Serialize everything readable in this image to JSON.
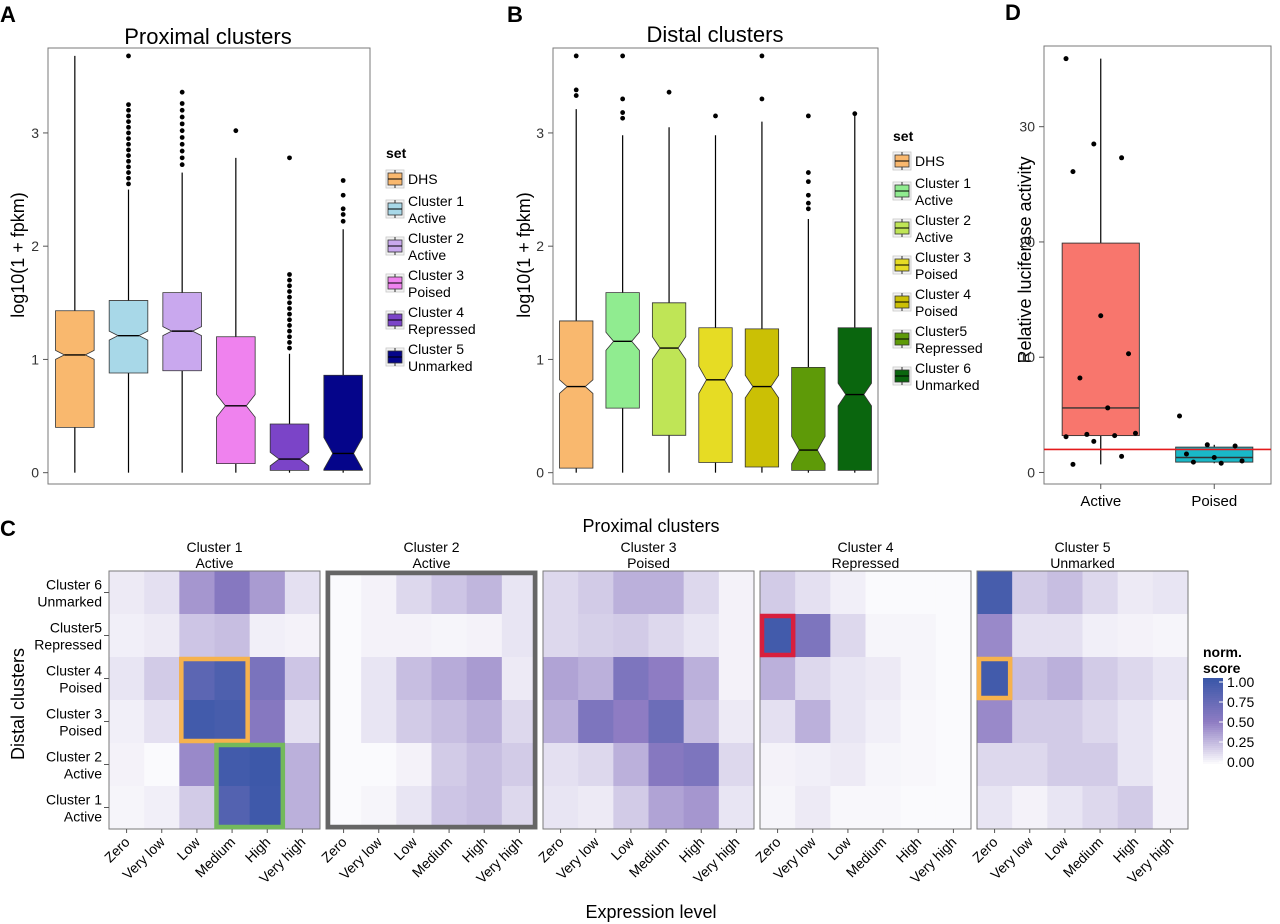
{
  "panels": {
    "A": {
      "letter": "A",
      "title": "Proximal clusters",
      "ylabel": "log10(1 + fpkm)",
      "ylim": [
        -0.1,
        3.75
      ],
      "yticks": [
        0,
        1,
        2,
        3
      ],
      "legend_title": "set",
      "boxes": [
        {
          "name": "DHS",
          "label_lines": [
            "DHS"
          ],
          "color": "#f9b86e",
          "q1": 0.4,
          "median": 1.04,
          "q3": 1.43,
          "notch": 0.04,
          "whisker_low": 0.0,
          "whisker_high": 3.68
        },
        {
          "name": "Cluster 1 Active",
          "label_lines": [
            "Cluster 1",
            "Active"
          ],
          "color": "#a8d8e8",
          "q1": 0.88,
          "median": 1.21,
          "q3": 1.52,
          "notch": 0.04,
          "whisker_low": 0.0,
          "whisker_high": 2.5,
          "outliers": [
            2.55,
            2.6,
            2.65,
            2.7,
            2.75,
            2.8,
            2.85,
            2.9,
            2.95,
            3.0,
            3.05,
            3.1,
            3.15,
            3.2,
            3.25,
            3.68
          ]
        },
        {
          "name": "Cluster 2 Active",
          "label_lines": [
            "Cluster 2",
            "Active"
          ],
          "color": "#c9a8ee",
          "q1": 0.9,
          "median": 1.25,
          "q3": 1.59,
          "notch": 0.04,
          "whisker_low": 0.0,
          "whisker_high": 2.65,
          "outliers": [
            2.72,
            2.78,
            2.84,
            2.9,
            2.96,
            3.02,
            3.08,
            3.14,
            3.2,
            3.26,
            3.36
          ]
        },
        {
          "name": "Cluster 3 Poised",
          "label_lines": [
            "Cluster 3",
            "Poised"
          ],
          "color": "#ef82ee",
          "q1": 0.08,
          "median": 0.59,
          "q3": 1.2,
          "notch": 0.1,
          "whisker_low": 0.0,
          "whisker_high": 2.78,
          "outliers": [
            3.02
          ]
        },
        {
          "name": "Cluster 4 Repressed",
          "label_lines": [
            "Cluster 4",
            "Repressed"
          ],
          "color": "#7b44c8",
          "q1": 0.02,
          "median": 0.12,
          "q3": 0.43,
          "notch": 0.06,
          "whisker_low": 0.0,
          "whisker_high": 1.05,
          "outliers": [
            1.1,
            1.15,
            1.2,
            1.25,
            1.3,
            1.35,
            1.4,
            1.45,
            1.5,
            1.55,
            1.6,
            1.65,
            1.7,
            1.75,
            2.78
          ]
        },
        {
          "name": "Cluster 5 Unmarked",
          "label_lines": [
            "Cluster 5",
            "Unmarked"
          ],
          "color": "#05058a",
          "q1": 0.02,
          "median": 0.17,
          "q3": 0.86,
          "notch": 0.14,
          "whisker_low": 0.0,
          "whisker_high": 2.15,
          "outliers": [
            2.22,
            2.28,
            2.33,
            2.45,
            2.58
          ]
        }
      ]
    },
    "B": {
      "letter": "B",
      "title": "Distal clusters",
      "ylabel": "log10(1 + fpkm)",
      "ylim": [
        -0.1,
        3.75
      ],
      "yticks": [
        0,
        1,
        2,
        3
      ],
      "legend_title": "set",
      "boxes": [
        {
          "name": "DHS",
          "label_lines": [
            "DHS"
          ],
          "color": "#f9b86e",
          "q1": 0.04,
          "median": 0.76,
          "q3": 1.34,
          "notch": 0.06,
          "whisker_low": 0.0,
          "whisker_high": 3.21,
          "outliers": [
            3.33,
            3.38,
            3.68
          ]
        },
        {
          "name": "Cluster 1 Active",
          "label_lines": [
            "Cluster 1",
            "Active"
          ],
          "color": "#90ec90",
          "q1": 0.57,
          "median": 1.16,
          "q3": 1.59,
          "notch": 0.08,
          "whisker_low": 0.0,
          "whisker_high": 2.98,
          "outliers": [
            3.13,
            3.18,
            3.3,
            3.68
          ]
        },
        {
          "name": "Cluster 2 Active",
          "label_lines": [
            "Cluster 2",
            "Active"
          ],
          "color": "#bfe556",
          "q1": 0.33,
          "median": 1.1,
          "q3": 1.5,
          "notch": 0.1,
          "whisker_low": 0.0,
          "whisker_high": 3.05,
          "outliers": [
            3.36
          ]
        },
        {
          "name": "Cluster 3 Poised",
          "label_lines": [
            "Cluster 3",
            "Poised"
          ],
          "color": "#e6dc24",
          "q1": 0.09,
          "median": 0.82,
          "q3": 1.28,
          "notch": 0.12,
          "whisker_low": 0.0,
          "whisker_high": 2.98,
          "outliers": [
            3.15
          ]
        },
        {
          "name": "Cluster 4 Poised",
          "label_lines": [
            "Cluster 4",
            "Poised"
          ],
          "color": "#cbc005",
          "q1": 0.05,
          "median": 0.76,
          "q3": 1.27,
          "notch": 0.1,
          "whisker_low": 0.0,
          "whisker_high": 3.1,
          "outliers": [
            3.3,
            3.68
          ]
        },
        {
          "name": "Cluster5 Repressed",
          "label_lines": [
            "Cluster5",
            "Repressed"
          ],
          "color": "#5e9a08",
          "q1": 0.02,
          "median": 0.2,
          "q3": 0.93,
          "notch": 0.12,
          "whisker_low": 0.0,
          "whisker_high": 2.24,
          "outliers": [
            2.33,
            2.38,
            2.45,
            2.57,
            2.65,
            3.15
          ]
        },
        {
          "name": "Cluster 6 Unmarked",
          "label_lines": [
            "Cluster 6",
            "Unmarked"
          ],
          "color": "#0a660e",
          "q1": 0.02,
          "median": 0.69,
          "q3": 1.28,
          "notch": 0.1,
          "whisker_low": 0.0,
          "whisker_high": 3.17,
          "outliers": [
            3.17
          ]
        }
      ]
    },
    "D": {
      "letter": "D",
      "ylabel": "Relative luciferase activity",
      "ylim": [
        -1,
        37
      ],
      "yticks": [
        0,
        10,
        20,
        30
      ],
      "reference_line": 2.0,
      "groups": [
        {
          "name": "Active",
          "color": "#f8766d",
          "q1": 3.2,
          "median": 5.6,
          "q3": 19.9,
          "whisker_low": 0.7,
          "whisker_high": 35.9,
          "points": [
            35.9,
            28.5,
            27.3,
            26.1,
            13.6,
            10.3,
            8.2,
            5.6,
            3.4,
            3.3,
            3.2,
            3.1,
            2.7,
            1.4,
            0.7
          ]
        },
        {
          "name": "Poised",
          "color": "#19b8c7",
          "q1": 0.9,
          "median": 1.3,
          "q3": 2.2,
          "whisker_low": 0.8,
          "whisker_high": 2.4,
          "points": [
            4.9,
            2.4,
            2.3,
            1.6,
            1.3,
            1.0,
            0.9,
            0.8
          ]
        }
      ]
    },
    "C": {
      "letter": "C",
      "top_title": "Proximal clusters",
      "ylabel": "Distal clusters",
      "xlabel": "Expression level",
      "legend_title_lines": [
        "norm.",
        "score"
      ],
      "legend_ticks": [
        "1.00",
        "0.75",
        "0.50",
        "0.25",
        "0.00"
      ],
      "color_low": "#ffffff",
      "color_high": "#3a57a8",
      "expression_levels": [
        "Zero",
        "Very low",
        "Low",
        "Medium",
        "High",
        "Very high"
      ],
      "row_labels": [
        [
          "Cluster 6",
          "Unmarked"
        ],
        [
          "Cluster5",
          "Repressed"
        ],
        [
          "Cluster 4",
          "Poised"
        ],
        [
          "Cluster 3",
          "Poised"
        ],
        [
          "Cluster 2",
          "Active"
        ],
        [
          "Cluster 1",
          "Active"
        ]
      ],
      "facets": [
        {
          "label_lines": [
            "Cluster 1",
            "Active"
          ],
          "values": [
            [
              0.08,
              0.12,
              0.4,
              0.55,
              0.38,
              0.12
            ],
            [
              0.06,
              0.08,
              0.22,
              0.25,
              0.06,
              0.05
            ],
            [
              0.1,
              0.2,
              0.8,
              0.88,
              0.62,
              0.22
            ],
            [
              0.06,
              0.12,
              0.95,
              0.92,
              0.55,
              0.12
            ],
            [
              0.05,
              0.02,
              0.45,
              0.95,
              0.98,
              0.3
            ],
            [
              0.04,
              0.06,
              0.2,
              0.85,
              0.97,
              0.3
            ]
          ]
        },
        {
          "label_lines": [
            "Cluster 2",
            "Active"
          ],
          "values": [
            [
              0.02,
              0.05,
              0.15,
              0.22,
              0.28,
              0.1
            ],
            [
              0.02,
              0.05,
              0.05,
              0.04,
              0.05,
              0.1
            ],
            [
              0.02,
              0.1,
              0.25,
              0.32,
              0.38,
              0.08
            ],
            [
              0.02,
              0.1,
              0.2,
              0.25,
              0.3,
              0.15
            ],
            [
              0.02,
              0.02,
              0.05,
              0.2,
              0.25,
              0.2
            ],
            [
              0.02,
              0.04,
              0.1,
              0.22,
              0.25,
              0.15
            ]
          ]
        },
        {
          "label_lines": [
            "Cluster 3",
            "Poised"
          ],
          "values": [
            [
              0.15,
              0.2,
              0.3,
              0.3,
              0.15,
              0.05
            ],
            [
              0.15,
              0.18,
              0.2,
              0.15,
              0.1,
              0.05
            ],
            [
              0.35,
              0.3,
              0.6,
              0.5,
              0.3,
              0.05
            ],
            [
              0.3,
              0.6,
              0.5,
              0.7,
              0.25,
              0.08
            ],
            [
              0.12,
              0.15,
              0.3,
              0.55,
              0.6,
              0.15
            ],
            [
              0.1,
              0.08,
              0.2,
              0.35,
              0.4,
              0.1
            ]
          ]
        },
        {
          "label_lines": [
            "Cluster 4",
            "Repressed"
          ],
          "values": [
            [
              0.2,
              0.12,
              0.06,
              0.02,
              0.02,
              0.02
            ],
            [
              0.95,
              0.6,
              0.15,
              0.04,
              0.04,
              0.02
            ],
            [
              0.3,
              0.15,
              0.1,
              0.08,
              0.04,
              0.02
            ],
            [
              0.12,
              0.3,
              0.1,
              0.06,
              0.03,
              0.02
            ],
            [
              0.05,
              0.06,
              0.08,
              0.04,
              0.03,
              0.02
            ],
            [
              0.04,
              0.08,
              0.03,
              0.03,
              0.02,
              0.02
            ]
          ]
        },
        {
          "label_lines": [
            "Cluster 5",
            "Unmarked"
          ],
          "values": [
            [
              0.92,
              0.2,
              0.25,
              0.15,
              0.08,
              0.1
            ],
            [
              0.45,
              0.12,
              0.12,
              0.06,
              0.05,
              0.04
            ],
            [
              0.95,
              0.25,
              0.3,
              0.2,
              0.15,
              0.1
            ],
            [
              0.45,
              0.2,
              0.2,
              0.15,
              0.1,
              0.05
            ],
            [
              0.15,
              0.15,
              0.2,
              0.2,
              0.1,
              0.05
            ],
            [
              0.1,
              0.05,
              0.1,
              0.15,
              0.2,
              0.05
            ]
          ]
        }
      ],
      "highlights": [
        {
          "facet": 0,
          "col_start": 2,
          "col_end": 3,
          "row_start": 2,
          "row_end": 3,
          "color": "#f6b24d"
        },
        {
          "facet": 0,
          "col_start": 3,
          "col_end": 4,
          "row_start": 4,
          "row_end": 5,
          "color": "#73b95c"
        },
        {
          "facet": 1,
          "col_start": 0,
          "col_end": 5,
          "row_start": 0,
          "row_end": 5,
          "color": "#666666"
        },
        {
          "facet": 3,
          "col_start": 0,
          "col_end": 0,
          "row_start": 1,
          "row_end": 1,
          "color": "#d81f3d"
        },
        {
          "facet": 4,
          "col_start": 0,
          "col_end": 0,
          "row_start": 2,
          "row_end": 2,
          "color": "#f6b24d"
        }
      ]
    }
  }
}
